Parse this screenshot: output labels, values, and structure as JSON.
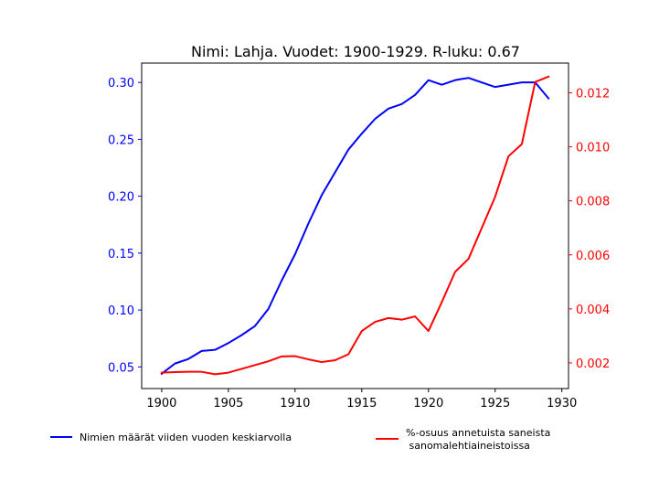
{
  "chart_data": {
    "type": "line",
    "title": "Nimi: Lahja. Vuodet: 1900-1929. R-luku: 0.67",
    "xlabel": "",
    "ylabel_left": "",
    "ylabel_right": "",
    "x": [
      1900,
      1901,
      1902,
      1903,
      1904,
      1905,
      1906,
      1907,
      1908,
      1909,
      1910,
      1911,
      1912,
      1913,
      1914,
      1915,
      1916,
      1917,
      1918,
      1919,
      1920,
      1921,
      1922,
      1923,
      1924,
      1925,
      1926,
      1927,
      1928,
      1929
    ],
    "xlim": [
      1898.5,
      1930.5
    ],
    "xticks": [
      1900,
      1905,
      1910,
      1915,
      1920,
      1925,
      1930
    ],
    "ylim_left": [
      0.031,
      0.317
    ],
    "yticks_left": [
      "0.05",
      "0.10",
      "0.15",
      "0.20",
      "0.25",
      "0.30"
    ],
    "ylim_right": [
      0.00105,
      0.0131
    ],
    "yticks_right": [
      "0.002",
      "0.004",
      "0.006",
      "0.008",
      "0.010",
      "0.012"
    ],
    "grid": false,
    "legend_placement": "below",
    "series": [
      {
        "name": "Nimien määrät viiden vuoden keskiarvolla",
        "axis": "left",
        "color": "#0000ff",
        "values": [
          0.044,
          0.053,
          0.057,
          0.064,
          0.065,
          0.071,
          0.078,
          0.086,
          0.101,
          0.126,
          0.149,
          0.176,
          0.201,
          0.221,
          0.241,
          0.255,
          0.268,
          0.277,
          0.281,
          0.289,
          0.302,
          0.298,
          0.302,
          0.304,
          0.3,
          0.296,
          0.298,
          0.3,
          0.3,
          0.286
        ]
      },
      {
        "name": "%-osuus annetuista saneista\n sanomalehtiaineistoissa",
        "axis": "right",
        "color": "#ff0000",
        "values": [
          0.00164,
          0.00166,
          0.00167,
          0.00167,
          0.00158,
          0.00164,
          0.00178,
          0.00192,
          0.00206,
          0.00224,
          0.00225,
          0.00213,
          0.00203,
          0.0021,
          0.00232,
          0.00318,
          0.00352,
          0.00366,
          0.0036,
          0.00372,
          0.00318,
          0.00425,
          0.00537,
          0.00585,
          0.007,
          0.00815,
          0.00965,
          0.0101,
          0.0124,
          0.0126
        ]
      }
    ]
  }
}
